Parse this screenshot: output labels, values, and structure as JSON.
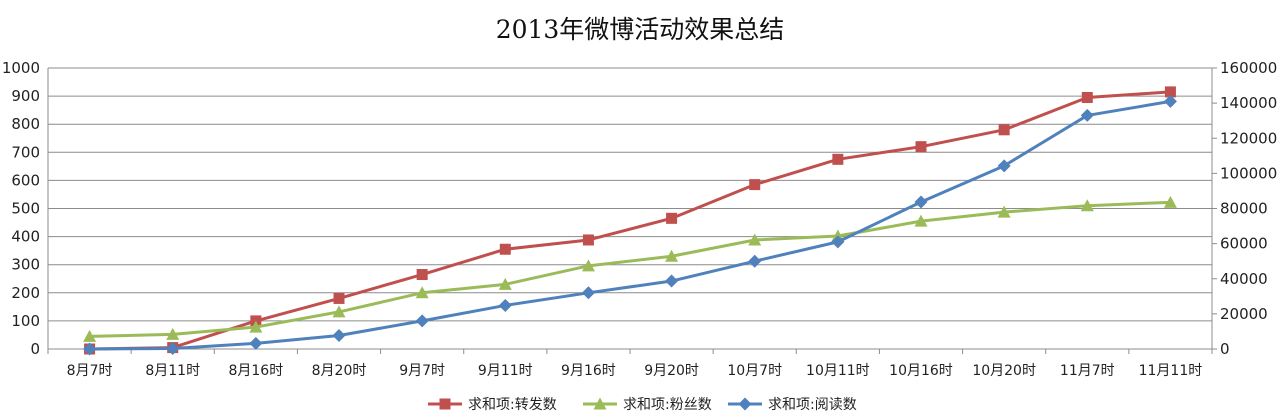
{
  "chart_data": {
    "type": "line",
    "title": "2013年微博活动效果总结",
    "categories": [
      "8月7时",
      "8月11时",
      "8月16时",
      "8月20时",
      "9月7时",
      "9月11时",
      "9月16时",
      "9月20时",
      "10月7时",
      "10月11时",
      "10月16时",
      "10月20时",
      "11月7时",
      "11月11时"
    ],
    "y_left": {
      "min": 0,
      "max": 1000,
      "step": 100,
      "ticks": [
        "0",
        "100",
        "200",
        "300",
        "400",
        "500",
        "600",
        "700",
        "800",
        "900",
        "1000"
      ]
    },
    "y_right": {
      "min": 0,
      "max": 160000,
      "step": 20000,
      "ticks": [
        "0",
        "20000",
        "40000",
        "60000",
        "80000",
        "100000",
        "120000",
        "140000",
        "160000"
      ]
    },
    "grid": true,
    "legend_position": "bottom",
    "series": [
      {
        "name": "求和项:转发数",
        "axis": "left",
        "color": "#c0504d",
        "marker": "square",
        "values": [
          0,
          5,
          100,
          180,
          265,
          355,
          388,
          465,
          585,
          675,
          720,
          780,
          895,
          915
        ]
      },
      {
        "name": "求和项:粉丝数",
        "axis": "left",
        "color": "#9bbb59",
        "marker": "triangle",
        "values": [
          45,
          52,
          78,
          132,
          200,
          230,
          296,
          330,
          388,
          402,
          455,
          487,
          510,
          522
        ]
      },
      {
        "name": "求和项:阅读数",
        "axis": "right",
        "color": "#4f81bd",
        "marker": "diamond",
        "values": [
          0,
          300,
          3200,
          7700,
          16000,
          24800,
          32000,
          38700,
          50000,
          61000,
          83700,
          104300,
          133000,
          141000
        ]
      }
    ]
  }
}
